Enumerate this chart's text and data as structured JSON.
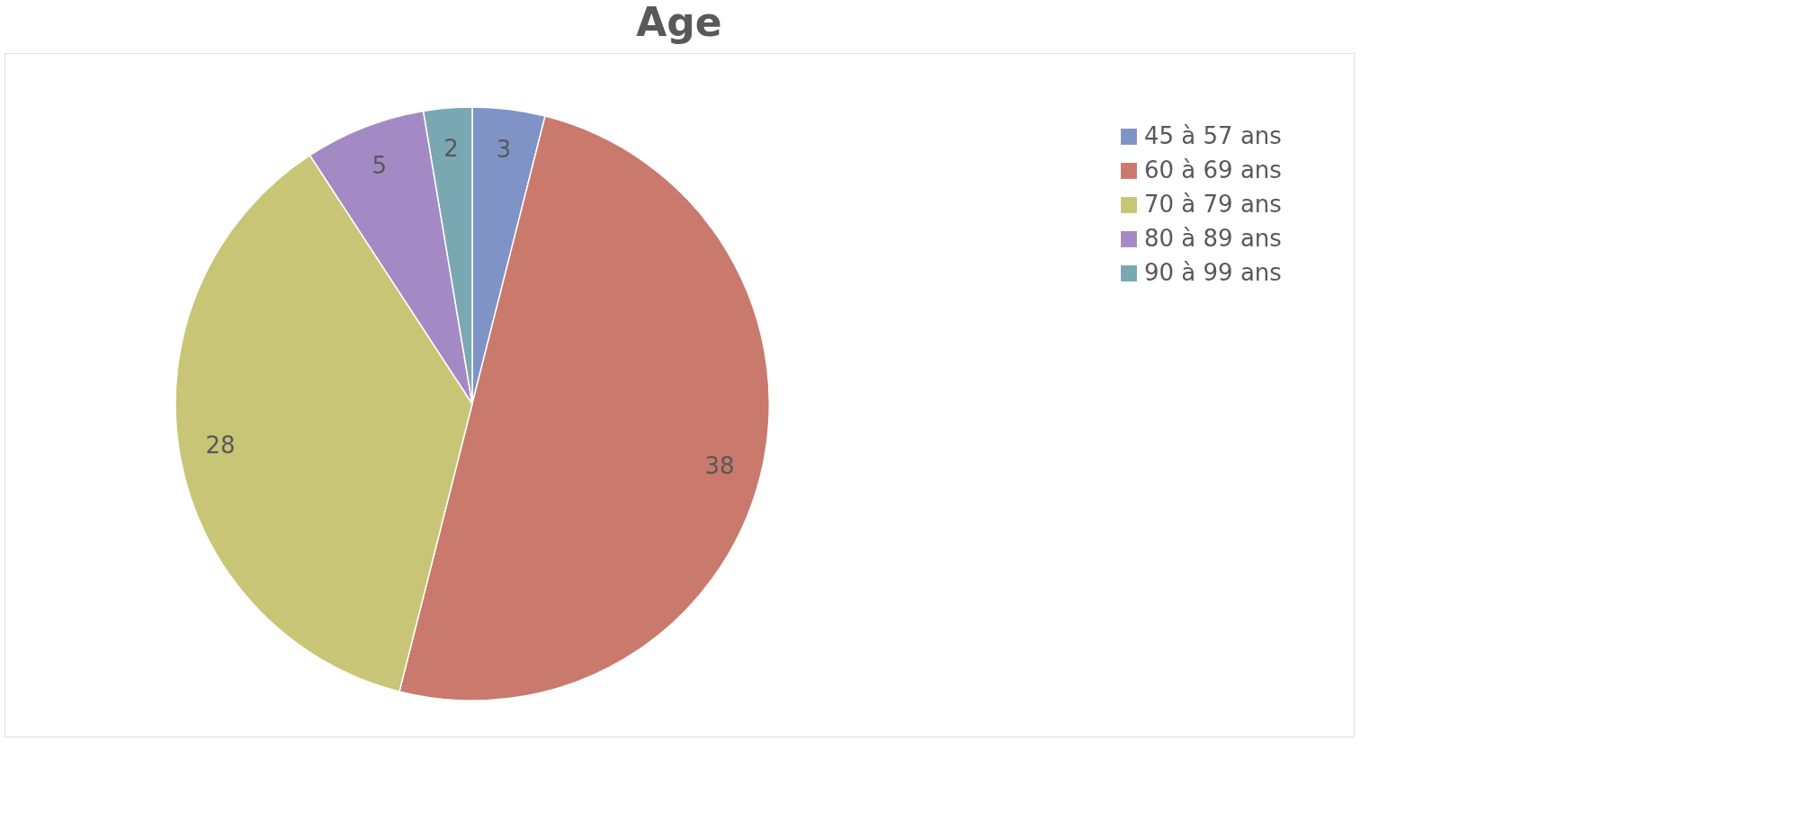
{
  "chart_data": {
    "type": "pie",
    "title": "Age",
    "categories": [
      "45 à 57 ans",
      "60 à 69 ans",
      "70 à 79 ans",
      "80 à 89 ans",
      "90 à 99 ans"
    ],
    "values": [
      3,
      38,
      28,
      5,
      2
    ],
    "colors": [
      "#7f93c6",
      "#c97a6c",
      "#c9c576",
      "#a48ac4",
      "#79a7b2"
    ],
    "data_labels": true,
    "legend": "top right"
  }
}
